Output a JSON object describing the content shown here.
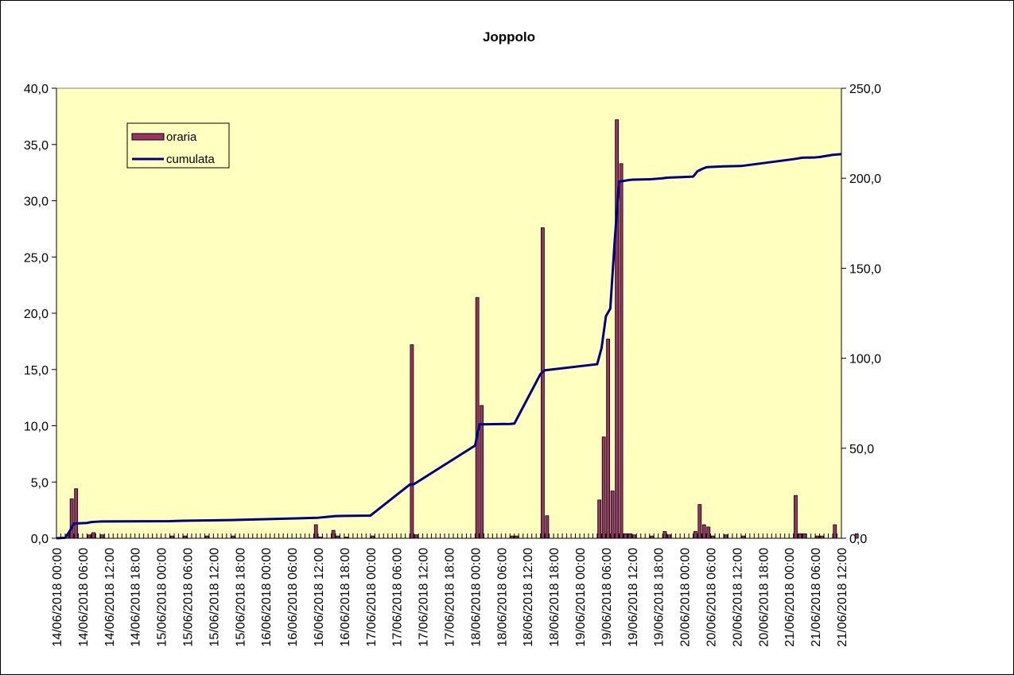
{
  "chart_data": {
    "type": "bar",
    "title": "Joppolo",
    "xlabel": "",
    "ylabel": "",
    "y_left": {
      "ylim": [
        0,
        40
      ],
      "ticks": [
        0,
        5,
        10,
        15,
        20,
        25,
        30,
        35,
        40
      ],
      "tick_labels": [
        "0,0",
        "5,0",
        "10,0",
        "15,0",
        "20,0",
        "25,0",
        "30,0",
        "35,0",
        "40,0"
      ]
    },
    "y_right": {
      "ylim": [
        0,
        250
      ],
      "ticks": [
        0,
        50,
        100,
        150,
        200,
        250
      ],
      "tick_labels": [
        "0,0",
        "50,0",
        "100,0",
        "150,0",
        "200,0",
        "250,0"
      ]
    },
    "x_tick_labels": [
      "14/06/2018 00:00",
      "14/06/2018 06:00",
      "14/06/2018 12:00",
      "14/06/2018 18:00",
      "15/06/2018 00:00",
      "15/06/2018 06:00",
      "15/06/2018 12:00",
      "15/06/2018 18:00",
      "16/06/2018 00:00",
      "16/06/2018 06:00",
      "16/06/2018 12:00",
      "16/06/2018 18:00",
      "17/06/2018 00:00",
      "17/06/2018 06:00",
      "17/06/2018 12:00",
      "17/06/2018 18:00",
      "18/06/2018 00:00",
      "18/06/2018 06:00",
      "18/06/2018 12:00",
      "18/06/2018 18:00",
      "19/06/2018 00:00",
      "19/06/2018 06:00",
      "19/06/2018 12:00",
      "19/06/2018 18:00",
      "20/06/2018 00:00",
      "20/06/2018 06:00",
      "20/06/2018 12:00",
      "20/06/2018 18:00",
      "21/06/2018 00:00",
      "21/06/2018 06:00",
      "21/06/2018 12:00"
    ],
    "hours_total": 180,
    "legend": {
      "position": "top-left",
      "entries": [
        "oraria",
        "cumulata"
      ]
    },
    "colors": {
      "plot_bg": "#ffffc0",
      "bar_fill": "#993366",
      "line": "#000080"
    },
    "series": [
      {
        "name": "oraria",
        "type": "bar",
        "axis": "left",
        "hour": [
          2,
          3,
          4,
          7,
          8,
          10,
          26,
          29,
          34,
          40,
          59,
          60,
          63,
          64,
          66,
          72,
          81,
          82,
          96,
          97,
          104,
          105,
          111,
          112,
          124,
          125,
          126,
          127,
          128,
          129,
          130,
          131,
          132,
          136,
          139,
          140,
          146,
          147,
          148,
          149,
          150,
          153,
          157,
          169,
          170,
          171,
          174,
          175,
          178,
          183
        ],
        "values": [
          0.3,
          3.5,
          4.4,
          0.3,
          0.5,
          0.3,
          0.2,
          0.2,
          0.2,
          0.2,
          1.2,
          0.1,
          0.7,
          0.2,
          0.1,
          0.2,
          17.2,
          0.3,
          21.4,
          11.8,
          0.2,
          0.2,
          27.6,
          2.0,
          3.4,
          9.0,
          17.7,
          4.2,
          37.2,
          33.3,
          0.4,
          0.4,
          0.3,
          0.2,
          0.6,
          0.3,
          0.6,
          3.0,
          1.2,
          1.0,
          0.2,
          0.3,
          0.2,
          3.8,
          0.4,
          0.4,
          0.2,
          0.2,
          1.2,
          0.4
        ]
      },
      {
        "name": "cumulata",
        "type": "line",
        "axis": "right",
        "hour": [
          0,
          2,
          3,
          4,
          7,
          8,
          10,
          26,
          29,
          34,
          40,
          59,
          60,
          63,
          64,
          66,
          72,
          81,
          82,
          96,
          97,
          104,
          105,
          111,
          112,
          124,
          125,
          126,
          127,
          128,
          129,
          130,
          131,
          132,
          136,
          139,
          140,
          146,
          147,
          148,
          149,
          150,
          153,
          157,
          169,
          170,
          171,
          174,
          175,
          178,
          183,
          186
        ],
        "values": [
          0.0,
          0.3,
          3.8,
          8.2,
          8.5,
          9.0,
          9.3,
          9.5,
          9.7,
          9.9,
          10.1,
          11.3,
          11.4,
          12.1,
          12.3,
          12.4,
          12.6,
          29.8,
          30.1,
          51.5,
          63.3,
          63.5,
          63.7,
          91.3,
          93.3,
          96.7,
          105.7,
          123.4,
          127.6,
          164.8,
          198.1,
          198.5,
          198.9,
          199.2,
          199.4,
          200.0,
          200.3,
          200.9,
          203.9,
          205.1,
          206.1,
          206.3,
          206.6,
          206.8,
          210.6,
          211.0,
          211.4,
          211.6,
          211.8,
          213.0,
          213.4,
          213.4
        ]
      }
    ]
  }
}
